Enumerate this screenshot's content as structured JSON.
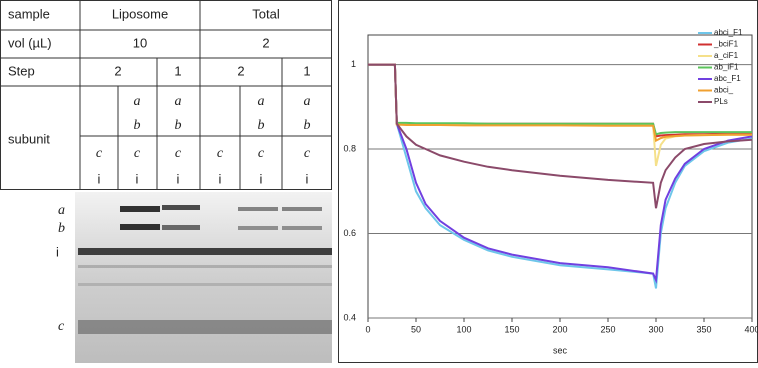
{
  "table": {
    "row_labels": [
      "sample",
      "vol (µL)",
      "Step",
      "subunit"
    ],
    "sample": [
      "Liposome",
      "Total"
    ],
    "vol": [
      "10",
      "2"
    ],
    "step": [
      "2",
      "1",
      "2",
      "1"
    ],
    "subunit": [
      [
        "c",
        "i"
      ],
      [
        "a",
        "b",
        "c",
        "i"
      ],
      [
        "a",
        "b",
        "c",
        "i"
      ],
      [
        "c",
        "i"
      ],
      [
        "a",
        "b",
        "c",
        "i"
      ],
      [
        "a",
        "b",
        "c",
        "i"
      ]
    ]
  },
  "gel": {
    "labels": [
      "a",
      "b",
      "i",
      "c"
    ]
  },
  "chart_data": {
    "type": "line",
    "xlabel": "sec",
    "x": [
      0,
      28,
      30,
      40,
      50,
      60,
      75,
      100,
      125,
      150,
      200,
      250,
      297,
      300,
      305,
      310,
      320,
      330,
      350,
      375,
      400
    ],
    "xlim": [
      0,
      400
    ],
    "xticks": [
      0,
      50,
      100,
      150,
      200,
      250,
      300,
      350,
      400
    ],
    "ylim": [
      0.4,
      1.07
    ],
    "yticks": [
      0.4,
      0.6,
      0.8,
      1
    ],
    "grid": true,
    "series": [
      {
        "name": "abci_F1",
        "color": "#6ec6ea",
        "values": [
          1,
          1,
          0.86,
          0.78,
          0.7,
          0.66,
          0.62,
          0.585,
          0.56,
          0.545,
          0.525,
          0.515,
          0.505,
          0.47,
          0.6,
          0.66,
          0.72,
          0.76,
          0.795,
          0.815,
          0.825
        ]
      },
      {
        "name": "_bciF1",
        "color": "#d03030",
        "values": [
          1,
          1,
          0.86,
          0.86,
          0.86,
          0.86,
          0.86,
          0.86,
          0.86,
          0.86,
          0.86,
          0.86,
          0.86,
          0.83,
          0.832,
          0.833,
          0.834,
          0.835,
          0.835,
          0.836,
          0.836
        ]
      },
      {
        "name": "a_ciF1",
        "color": "#f5e08a",
        "values": [
          1,
          1,
          0.86,
          0.858,
          0.858,
          0.858,
          0.858,
          0.858,
          0.858,
          0.858,
          0.858,
          0.857,
          0.857,
          0.76,
          0.81,
          0.825,
          0.83,
          0.832,
          0.833,
          0.834,
          0.834
        ]
      },
      {
        "name": "ab_iF1",
        "color": "#5cc45c",
        "values": [
          1,
          1,
          0.862,
          0.862,
          0.861,
          0.861,
          0.861,
          0.861,
          0.86,
          0.86,
          0.86,
          0.86,
          0.86,
          0.835,
          0.838,
          0.839,
          0.84,
          0.84,
          0.84,
          0.84,
          0.84
        ]
      },
      {
        "name": "abc_F1",
        "color": "#7040e0",
        "values": [
          1,
          1,
          0.86,
          0.8,
          0.72,
          0.67,
          0.63,
          0.59,
          0.565,
          0.55,
          0.53,
          0.52,
          0.505,
          0.49,
          0.62,
          0.68,
          0.73,
          0.765,
          0.8,
          0.82,
          0.83
        ]
      },
      {
        "name": "abci_",
        "color": "#f0a030",
        "values": [
          1,
          1,
          0.858,
          0.857,
          0.857,
          0.857,
          0.857,
          0.856,
          0.856,
          0.856,
          0.856,
          0.855,
          0.855,
          0.82,
          0.826,
          0.829,
          0.831,
          0.832,
          0.833,
          0.834,
          0.834
        ]
      },
      {
        "name": "PLs",
        "color": "#8b4a6a",
        "values": [
          1,
          1,
          0.86,
          0.83,
          0.81,
          0.8,
          0.785,
          0.77,
          0.758,
          0.75,
          0.737,
          0.727,
          0.72,
          0.66,
          0.72,
          0.75,
          0.78,
          0.8,
          0.812,
          0.818,
          0.822
        ]
      }
    ]
  }
}
